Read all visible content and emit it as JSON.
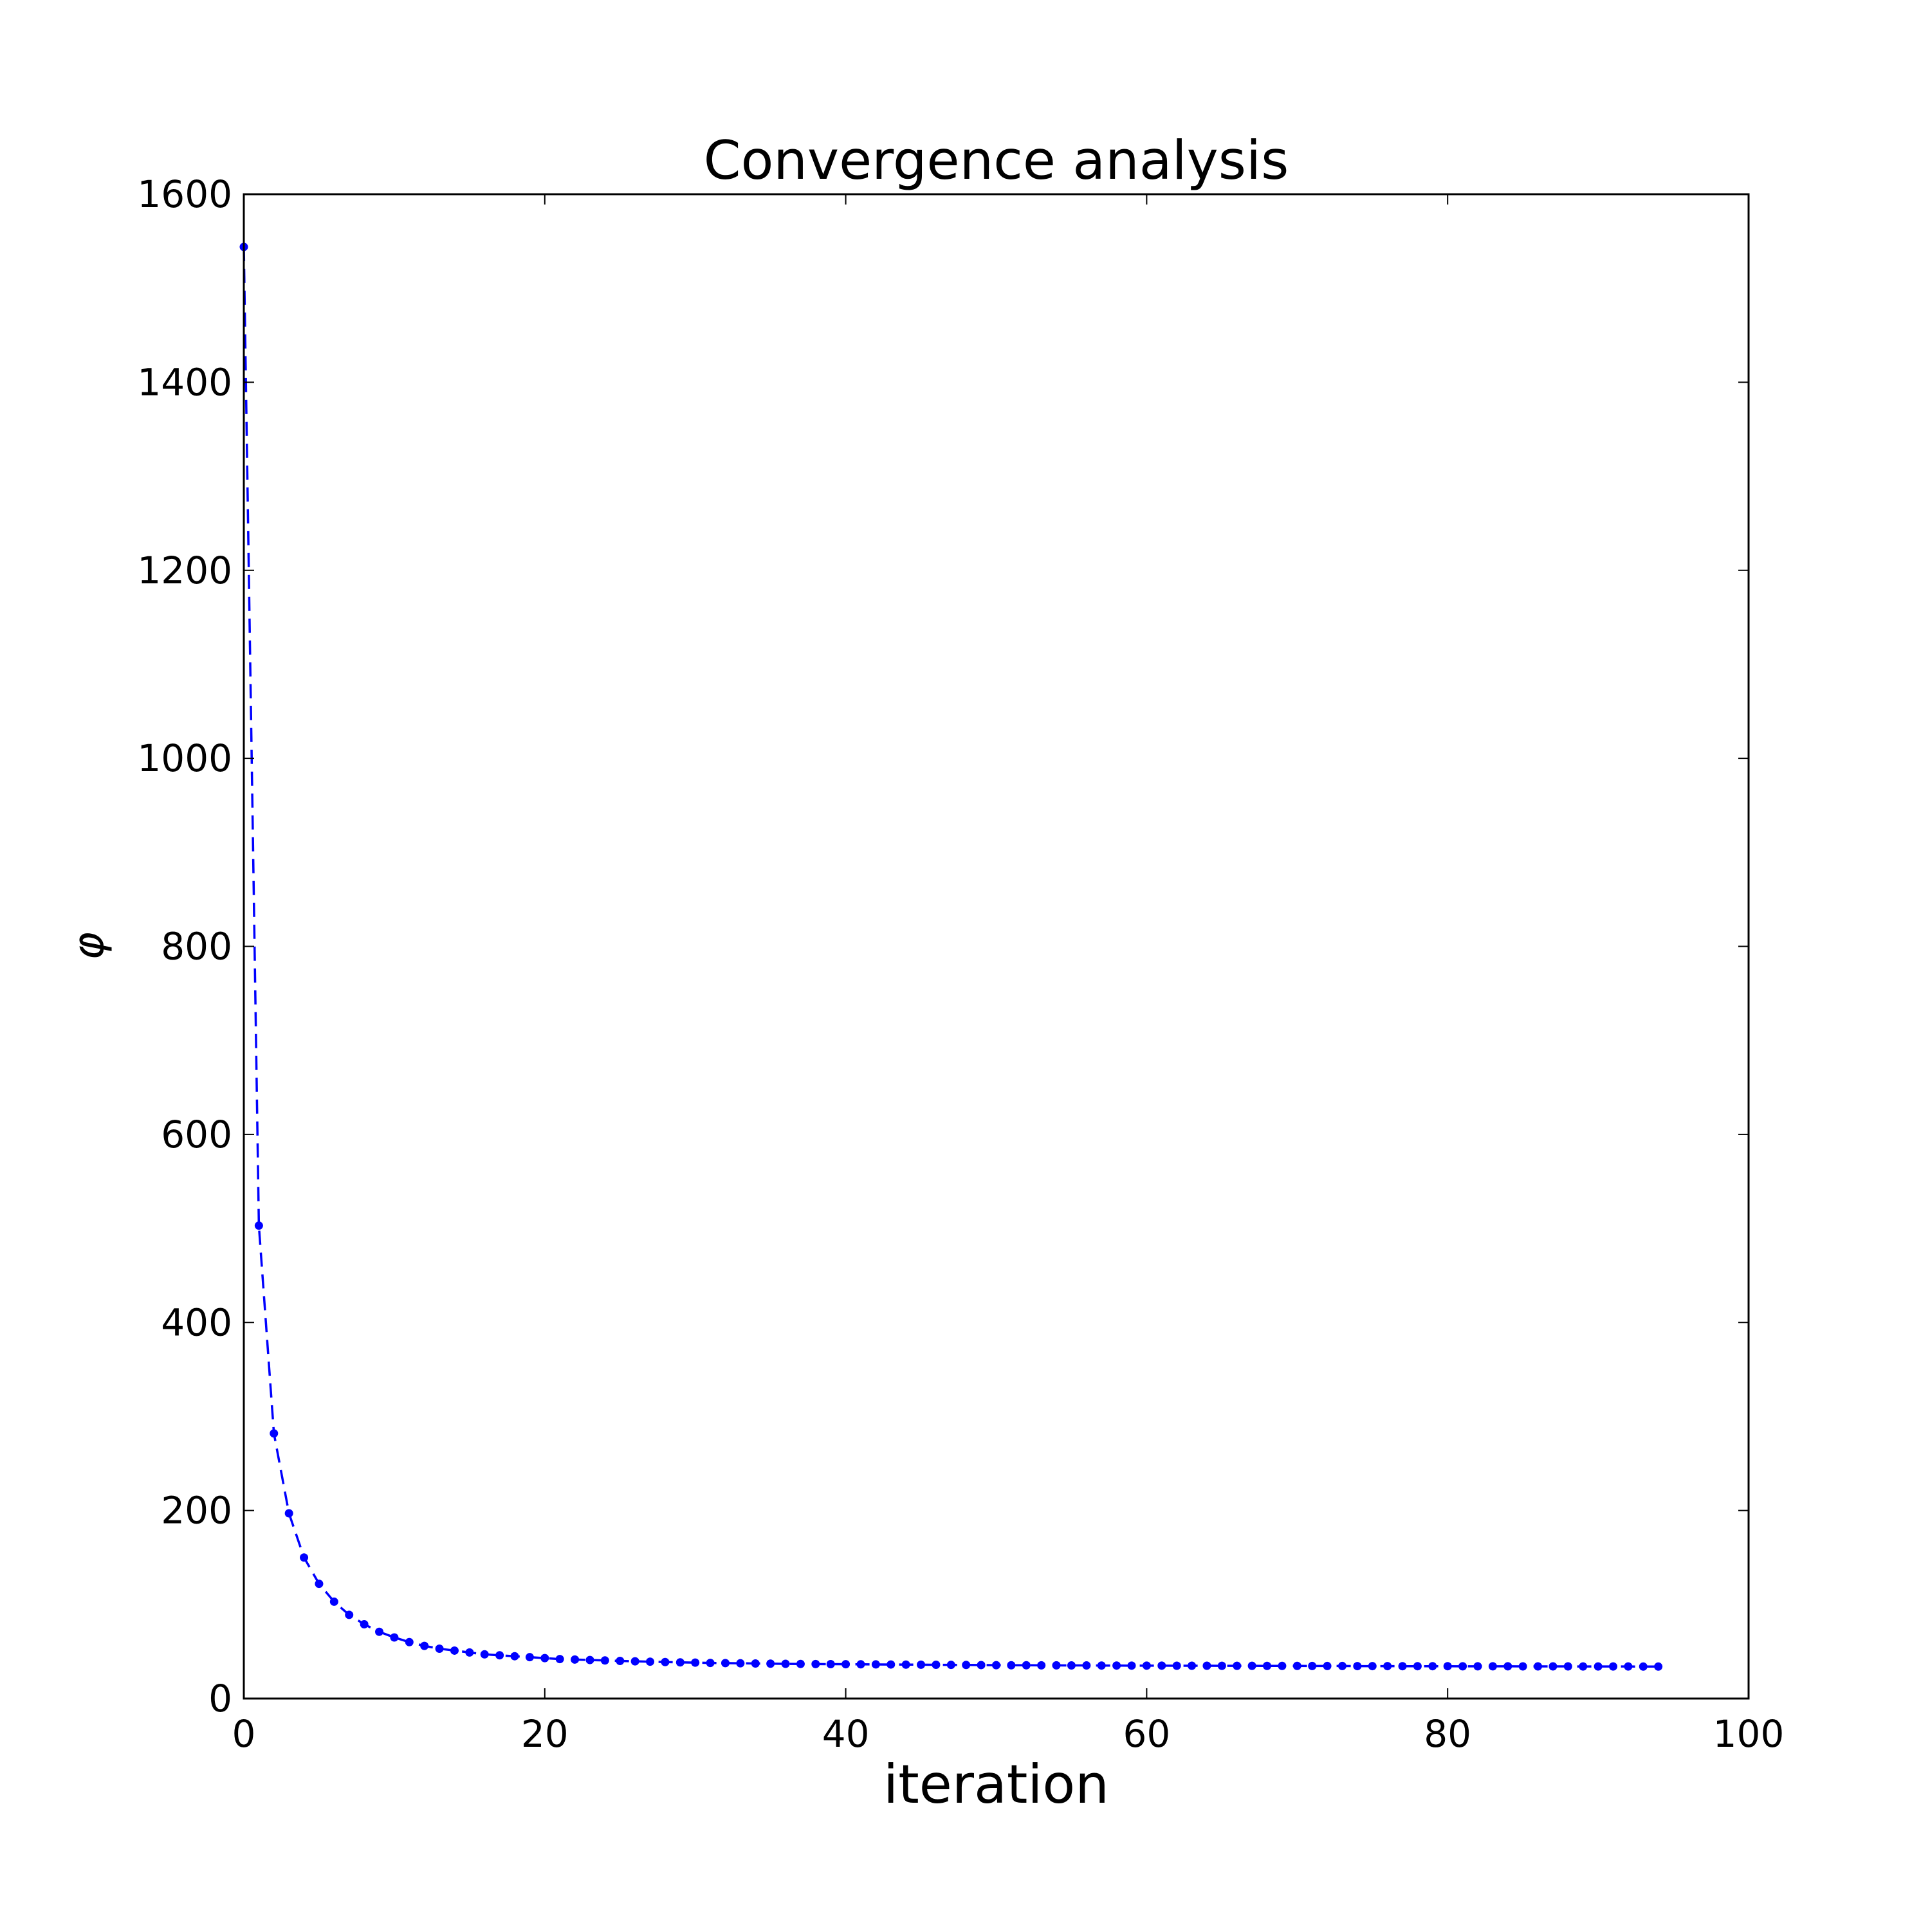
{
  "chart_data": {
    "type": "line",
    "title": "Convergence analysis",
    "xlabel": "iteration",
    "ylabel": "φ",
    "xlim": [
      0,
      100
    ],
    "ylim": [
      0,
      1600
    ],
    "xticks": [
      0,
      20,
      40,
      60,
      80,
      100
    ],
    "yticks": [
      0,
      200,
      400,
      600,
      800,
      1000,
      1200,
      1400,
      1600
    ],
    "grid": false,
    "legend": "none",
    "line_style": "dashed",
    "marker": "dot",
    "color": "#0000ff",
    "series": [
      {
        "x": [
          0,
          1,
          2,
          3,
          4,
          5,
          6,
          7,
          8,
          9,
          10,
          11,
          12,
          13,
          14,
          15,
          16,
          17,
          18,
          19,
          20,
          21,
          22,
          23,
          24,
          25,
          26,
          27,
          28,
          29,
          30,
          31,
          32,
          33,
          34,
          35,
          36,
          37,
          38,
          39,
          40,
          41,
          42,
          43,
          44,
          45,
          46,
          47,
          48,
          49,
          50,
          51,
          52,
          53,
          54,
          55,
          56,
          57,
          58,
          59,
          60,
          61,
          62,
          63,
          64,
          65,
          66,
          67,
          68,
          69,
          70,
          71,
          72,
          73,
          74,
          75,
          76,
          77,
          78,
          79,
          80,
          81,
          82,
          83,
          84,
          85,
          86,
          87,
          88,
          89,
          90,
          91,
          92,
          93,
          94
        ],
        "values": [
          1544,
          503,
          282,
          197,
          150,
          122,
          103,
          89,
          79,
          71,
          65,
          60,
          56,
          53,
          51,
          49,
          47,
          46,
          45,
          44,
          43,
          42,
          41.5,
          41,
          40.5,
          40,
          39.6,
          39.2,
          38.8,
          38.5,
          38.2,
          37.9,
          37.7,
          37.5,
          37.3,
          37.1,
          36.9,
          36.8,
          36.7,
          36.6,
          36.5,
          36.4,
          36.3,
          36.2,
          36.1,
          36,
          35.9,
          35.8,
          35.7,
          35.6,
          35.5,
          35.4,
          35.4,
          35.3,
          35.3,
          35.2,
          35.2,
          35.1,
          35.1,
          35,
          35,
          35,
          34.9,
          34.9,
          34.9,
          34.8,
          34.8,
          34.8,
          34.7,
          34.7,
          34.7,
          34.6,
          34.6,
          34.6,
          34.5,
          34.5,
          34.5,
          34.4,
          34.4,
          34.4,
          34.4,
          34.3,
          34.3,
          34.3,
          34.3,
          34.2,
          34.2,
          34.2,
          34.2,
          34.1,
          34.1,
          34.1,
          34.1,
          34,
          34
        ]
      }
    ]
  }
}
